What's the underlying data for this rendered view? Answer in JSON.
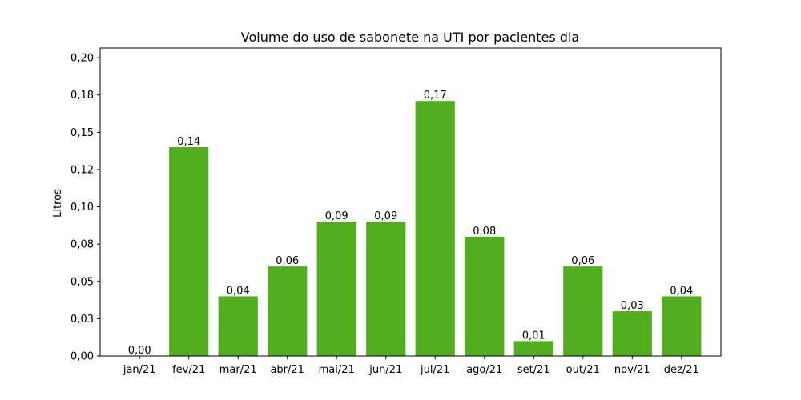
{
  "chart_data": {
    "type": "bar",
    "title": "Volume do uso de sabonete na UTI por pacientes dia",
    "xlabel": "",
    "ylabel": "Litros",
    "categories": [
      "jan/21",
      "fev/21",
      "mar/21",
      "abr/21",
      "mai/21",
      "jun/21",
      "jul/21",
      "ago/21",
      "set/21",
      "out/21",
      "nov/21",
      "dez/21"
    ],
    "values": [
      0.0,
      0.14,
      0.04,
      0.06,
      0.09,
      0.09,
      0.171,
      0.08,
      0.01,
      0.06,
      0.03,
      0.04
    ],
    "data_labels": [
      "0,00",
      "0,14",
      "0,04",
      "0,06",
      "0,09",
      "0,09",
      "0,17",
      "0,08",
      "0,01",
      "0,06",
      "0,03",
      "0,04"
    ],
    "yticks": [
      0.0,
      0.025,
      0.05,
      0.075,
      0.1,
      0.125,
      0.15,
      0.175,
      0.2
    ],
    "ytick_labels": [
      "0,00",
      "0,03",
      "0,05",
      "0,08",
      "0,10",
      "0,12",
      "0,15",
      "0,18",
      "0,20"
    ],
    "ylim": [
      0,
      0.2
    ],
    "bar_color": "#52ad1f",
    "grid": false,
    "legend": "none"
  }
}
